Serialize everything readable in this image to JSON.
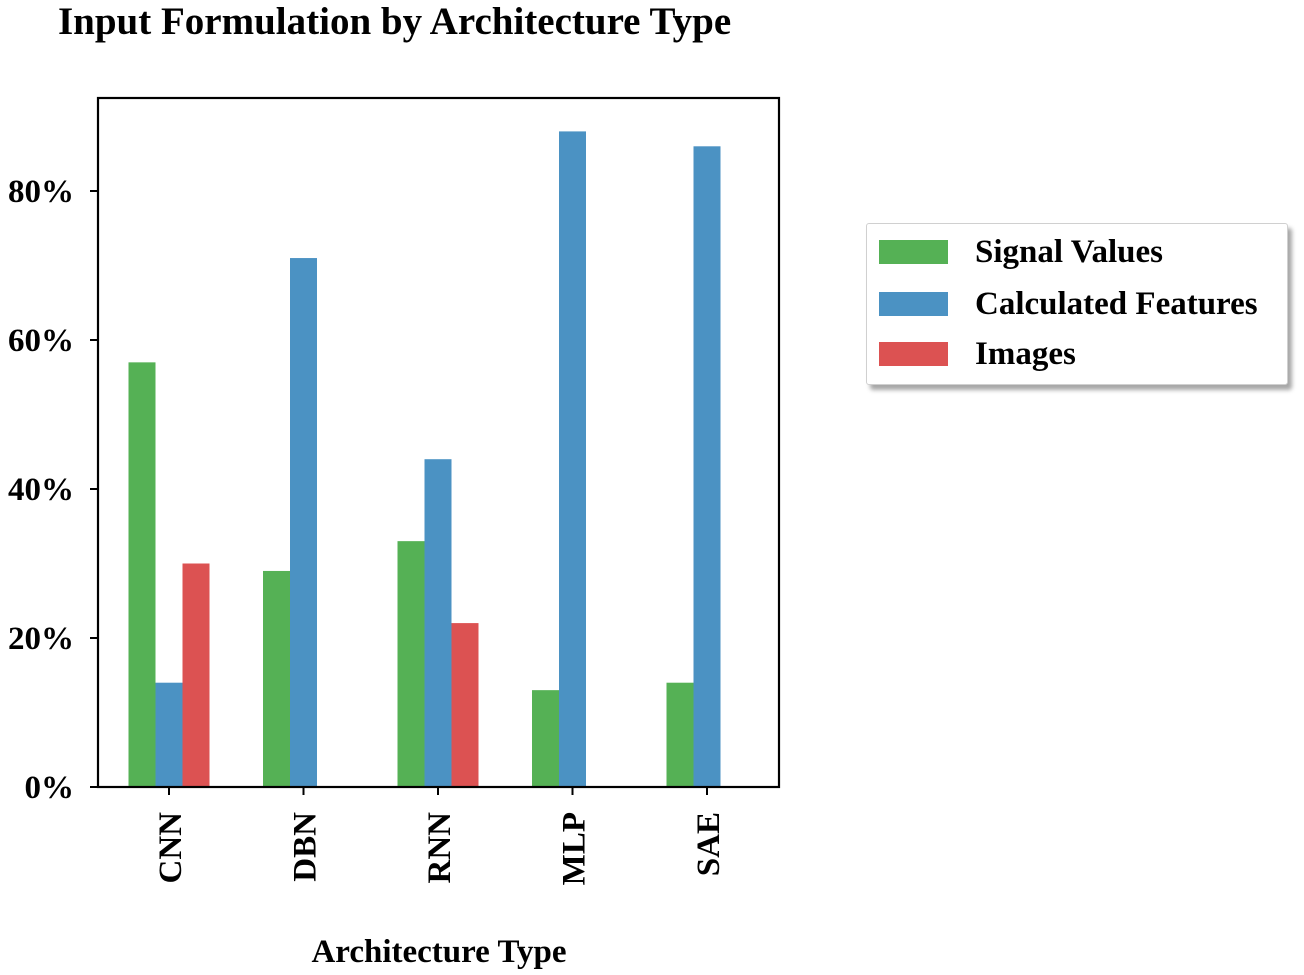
{
  "chart_data": {
    "type": "bar",
    "title": "Input Formulation by Architecture Type",
    "xlabel": "Architecture Type",
    "ylabel": "",
    "categories": [
      "CNN",
      "DBN",
      "RNN",
      "MLP",
      "SAE"
    ],
    "series": [
      {
        "name": "Signal Values",
        "color": "#55b155",
        "values": [
          57,
          29,
          33,
          13,
          14
        ]
      },
      {
        "name": "Calculated Features",
        "color": "#4b92c3",
        "values": [
          14,
          71,
          44,
          88,
          86
        ]
      },
      {
        "name": "Images",
        "color": "#dc5252",
        "values": [
          30,
          0,
          22,
          0,
          0
        ]
      }
    ],
    "ylim": [
      0,
      92
    ],
    "yticks": [
      0,
      20,
      40,
      60,
      80
    ],
    "ytick_labels": [
      "0%",
      "20%",
      "40%",
      "60%",
      "80%"
    ],
    "legend_placement": "right, outside",
    "grid": false
  }
}
